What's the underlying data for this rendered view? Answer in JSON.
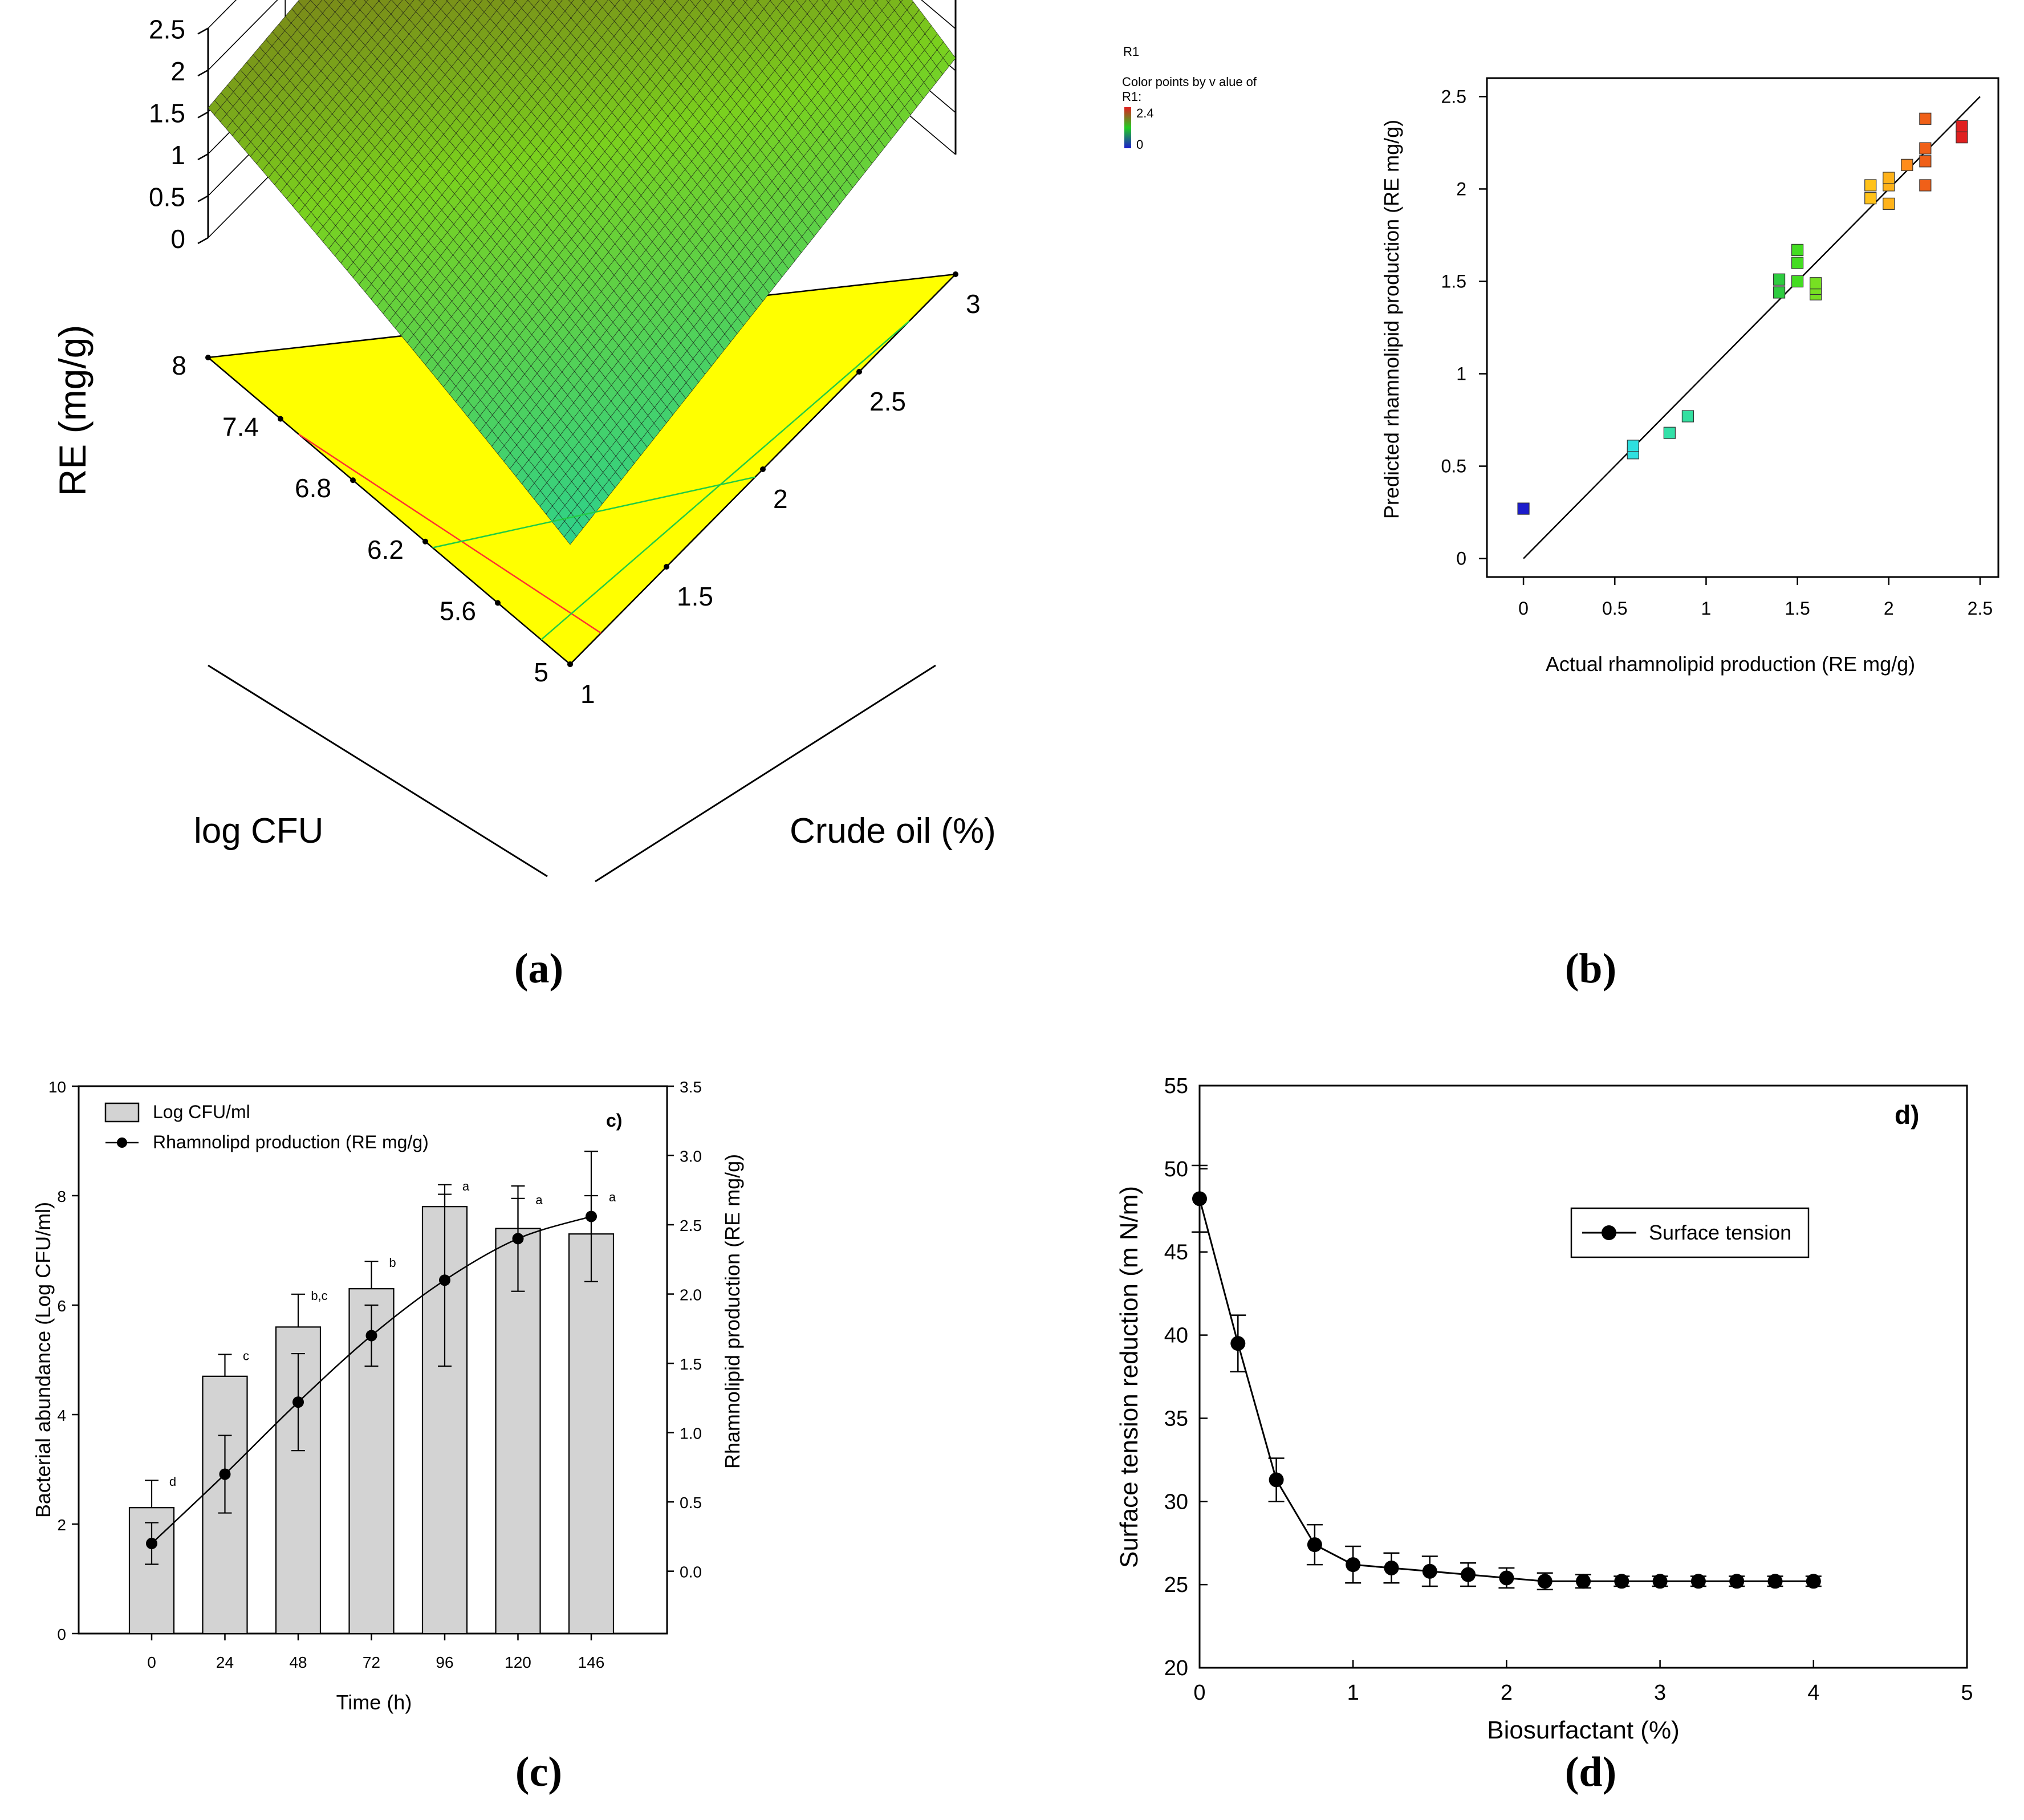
{
  "captions": [
    "(a)",
    "(b)",
    "(c)",
    "(d)"
  ],
  "chart_data": [
    {
      "type": "surface",
      "panel": "a",
      "zlabel": "RE (mg/g)",
      "xlabel": "log CFU",
      "ylabel": "Crude oil (%)",
      "z_ticks": [
        "0",
        "0.5",
        "1",
        "1.5",
        "2",
        "2.5"
      ],
      "x_ticks": [
        "8",
        "7.4",
        "6.8",
        "6.2",
        "5.6",
        "5"
      ],
      "y_ticks": [
        "1",
        "1.5",
        "2",
        "2.5",
        "3"
      ],
      "zlim": [
        0,
        2.5
      ],
      "corner_values": {
        "logcfu5_oil1": 0.0,
        "logcfu8_oil1": 1.55,
        "logcfu5_oil3": 1.15,
        "logcfu8_oil3": 2.35
      },
      "peak_value": 2.45,
      "design_point_value": 2.4,
      "colors": {
        "low": "#2fd28a",
        "mid": "#7bd11e",
        "high": "#7a2a12",
        "floor": "#ffff00"
      }
    },
    {
      "type": "scatter",
      "panel": "b",
      "legend_title": "R1",
      "legend_text": [
        "Color points by v alue of",
        "R1:"
      ],
      "legend_max": "2.4",
      "legend_min": "0",
      "xlabel": "Actual rhamnolipid production (RE mg/g)",
      "ylabel": "Predicted rhamnolipid production (RE mg/g)",
      "x_ticks": [
        "0",
        "0.5",
        "1",
        "1.5",
        "2",
        "2.5"
      ],
      "y_ticks": [
        "0",
        "0.5",
        "1",
        "1.5",
        "2",
        "2.5"
      ],
      "xlim": [
        -0.2,
        2.6
      ],
      "ylim": [
        -0.1,
        2.6
      ],
      "points": [
        {
          "x": 0.0,
          "y": 0.27,
          "color": "#1c1ccc"
        },
        {
          "x": 0.6,
          "y": 0.57,
          "color": "#2ee0e0"
        },
        {
          "x": 0.6,
          "y": 0.61,
          "color": "#2ee0e0"
        },
        {
          "x": 0.8,
          "y": 0.68,
          "color": "#33e0a8"
        },
        {
          "x": 0.9,
          "y": 0.77,
          "color": "#33e0a0"
        },
        {
          "x": 1.4,
          "y": 1.44,
          "color": "#2ecc40"
        },
        {
          "x": 1.4,
          "y": 1.51,
          "color": "#2ecc40"
        },
        {
          "x": 1.5,
          "y": 1.5,
          "color": "#44dd22"
        },
        {
          "x": 1.5,
          "y": 1.6,
          "color": "#44dd22"
        },
        {
          "x": 1.5,
          "y": 1.67,
          "color": "#44dd22"
        },
        {
          "x": 1.6,
          "y": 1.43,
          "color": "#77e022"
        },
        {
          "x": 1.6,
          "y": 1.46,
          "color": "#77e022"
        },
        {
          "x": 1.6,
          "y": 1.49,
          "color": "#77e022"
        },
        {
          "x": 1.9,
          "y": 1.95,
          "color": "#ffc21a"
        },
        {
          "x": 1.9,
          "y": 2.02,
          "color": "#ffc21a"
        },
        {
          "x": 2.0,
          "y": 1.92,
          "color": "#ffb21a"
        },
        {
          "x": 2.0,
          "y": 2.02,
          "color": "#ffb21a"
        },
        {
          "x": 2.0,
          "y": 2.06,
          "color": "#ffb21a"
        },
        {
          "x": 2.1,
          "y": 2.13,
          "color": "#ff8c1a"
        },
        {
          "x": 2.2,
          "y": 2.02,
          "color": "#f06018"
        },
        {
          "x": 2.2,
          "y": 2.15,
          "color": "#f06018"
        },
        {
          "x": 2.2,
          "y": 2.22,
          "color": "#f06018"
        },
        {
          "x": 2.2,
          "y": 2.38,
          "color": "#f06018"
        },
        {
          "x": 2.4,
          "y": 2.28,
          "color": "#e02020"
        },
        {
          "x": 2.4,
          "y": 2.34,
          "color": "#e02020"
        }
      ],
      "reference_line": {
        "x": [
          0,
          2.5
        ],
        "y": [
          0,
          2.5
        ]
      }
    },
    {
      "type": "bar+line",
      "panel": "c",
      "panel_label": "c)",
      "xlabel": "Time (h)",
      "ylabel_left": "Bacterial abundance (Log CFU/ml)",
      "ylabel_right": "Rhamnolipid production (RE mg/g)",
      "categories": [
        "0",
        "24",
        "48",
        "72",
        "96",
        "120",
        "146"
      ],
      "y_ticks": [
        "0",
        "2",
        "4",
        "6",
        "8",
        "10"
      ],
      "y2_ticks": [
        "0.0",
        "0.5",
        "1.0",
        "1.5",
        "2.0",
        "2.5",
        "3.0",
        "3.5"
      ],
      "ylim": [
        0,
        10
      ],
      "y2lim": [
        -0.45,
        3.5
      ],
      "legend": [
        "Log CFU/ml",
        "Rhamnolipd production (RE mg/g)"
      ],
      "bars": {
        "values": [
          2.3,
          4.7,
          5.6,
          6.3,
          7.8,
          7.4,
          7.3
        ],
        "errors": [
          0.5,
          0.4,
          0.6,
          0.5,
          0.4,
          0.55,
          0.7
        ],
        "letters": [
          "d",
          "c",
          "b,c",
          "b",
          "a",
          "a",
          "a"
        ]
      },
      "line": {
        "values": [
          0.2,
          0.7,
          1.22,
          1.7,
          2.1,
          2.4,
          2.56
        ],
        "errors": [
          0.15,
          0.28,
          0.35,
          0.22,
          0.62,
          0.38,
          0.47
        ]
      },
      "colors": {
        "bar": "#d3d3d3"
      }
    },
    {
      "type": "line",
      "panel": "d",
      "panel_label": "d)",
      "xlabel": "Biosurfactant (%)",
      "ylabel": "Surface tension reduction (m N/m)",
      "x_ticks": [
        "0",
        "1",
        "2",
        "3",
        "4",
        "5"
      ],
      "y_ticks": [
        "20",
        "25",
        "30",
        "35",
        "40",
        "45",
        "50",
        "55"
      ],
      "xlim": [
        0,
        5
      ],
      "ylim": [
        20,
        55
      ],
      "legend": [
        "Surface tension"
      ],
      "series": [
        {
          "name": "Surface tension",
          "x": [
            0,
            0.25,
            0.5,
            0.75,
            1.0,
            1.25,
            1.5,
            1.75,
            2.0,
            2.25,
            2.5,
            2.75,
            3.0,
            3.25,
            3.5,
            3.75,
            4.0
          ],
          "y": [
            48.2,
            39.5,
            31.3,
            27.4,
            26.2,
            26.0,
            25.8,
            25.6,
            25.4,
            25.2,
            25.2,
            25.2,
            25.2,
            25.2,
            25.2,
            25.2,
            25.2
          ],
          "err": [
            2.0,
            1.7,
            1.3,
            1.2,
            1.1,
            0.9,
            0.9,
            0.7,
            0.6,
            0.5,
            0.4,
            0.3,
            0.3,
            0.3,
            0.3,
            0.3,
            0.3
          ]
        }
      ]
    }
  ]
}
